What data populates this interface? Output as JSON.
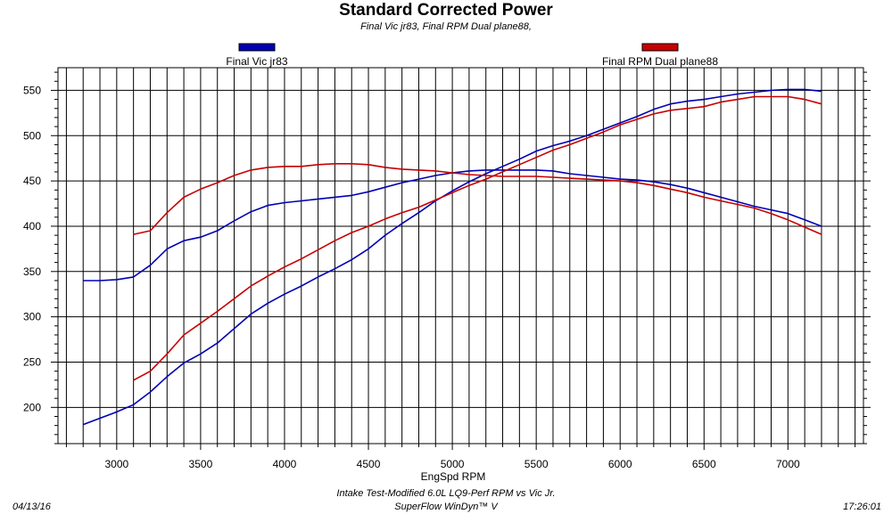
{
  "chart_data": {
    "type": "line",
    "title": "Standard Corrected Power",
    "subtitle": "Final Vic jr83, Final RPM Dual plane88,",
    "xlabel": "EngSpd RPM",
    "ylabel": "",
    "xlim": [
      2650,
      7450
    ],
    "ylim": [
      160,
      575
    ],
    "xticks": [
      3000,
      3500,
      4000,
      4500,
      5000,
      5500,
      6000,
      6500,
      7000
    ],
    "yticks": [
      200,
      250,
      300,
      350,
      400,
      450,
      500,
      550
    ],
    "grid": true,
    "legend_placement": "top",
    "series": [
      {
        "name": "Final Vic jr83",
        "metric": "power",
        "color": "#0000b4",
        "x": [
          2800,
          2900,
          3000,
          3100,
          3200,
          3300,
          3400,
          3500,
          3600,
          3700,
          3800,
          3900,
          4000,
          4100,
          4200,
          4300,
          4400,
          4500,
          4600,
          4700,
          4800,
          4900,
          5000,
          5100,
          5200,
          5300,
          5400,
          5500,
          5600,
          5700,
          5800,
          5900,
          6000,
          6100,
          6200,
          6300,
          6400,
          6500,
          6600,
          6700,
          6800,
          6900,
          7000,
          7100,
          7200
        ],
        "values": [
          181,
          188,
          195,
          203,
          217,
          234,
          249,
          259,
          271,
          287,
          303,
          315,
          325,
          334,
          344,
          353,
          363,
          375,
          390,
          403,
          415,
          428,
          439,
          449,
          458,
          466,
          474,
          483,
          489,
          494,
          500,
          507,
          514,
          521,
          529,
          535,
          538,
          540,
          543,
          546,
          548,
          550,
          551,
          551,
          549
        ]
      },
      {
        "name": "Final Vic jr83",
        "metric": "torque",
        "color": "#0000b4",
        "x": [
          2800,
          2900,
          3000,
          3100,
          3200,
          3300,
          3400,
          3500,
          3600,
          3700,
          3800,
          3900,
          4000,
          4100,
          4200,
          4300,
          4400,
          4500,
          4600,
          4700,
          4800,
          4900,
          5000,
          5100,
          5200,
          5300,
          5400,
          5500,
          5600,
          5700,
          5800,
          5900,
          6000,
          6100,
          6200,
          6300,
          6400,
          6500,
          6600,
          6700,
          6800,
          6900,
          7000,
          7100,
          7200
        ],
        "values": [
          340,
          340,
          341,
          344,
          357,
          375,
          384,
          388,
          395,
          406,
          416,
          423,
          426,
          428,
          430,
          432,
          434,
          438,
          443,
          448,
          452,
          456,
          459,
          461,
          462,
          462,
          462,
          462,
          461,
          458,
          456,
          454,
          452,
          451,
          449,
          446,
          442,
          437,
          432,
          427,
          422,
          418,
          414,
          407,
          400
        ]
      },
      {
        "name": "Final RPM Dual plane88",
        "metric": "power",
        "color": "#c80000",
        "x": [
          3100,
          3200,
          3300,
          3400,
          3500,
          3600,
          3700,
          3800,
          3900,
          4000,
          4100,
          4200,
          4300,
          4400,
          4500,
          4600,
          4700,
          4800,
          4900,
          5000,
          5100,
          5200,
          5300,
          5400,
          5500,
          5600,
          5700,
          5800,
          5900,
          6000,
          6100,
          6200,
          6300,
          6400,
          6500,
          6600,
          6700,
          6800,
          6900,
          7000,
          7100,
          7200
        ],
        "values": [
          230,
          240,
          259,
          280,
          293,
          306,
          320,
          334,
          345,
          355,
          364,
          374,
          384,
          393,
          400,
          408,
          415,
          421,
          429,
          437,
          445,
          452,
          460,
          468,
          476,
          484,
          490,
          497,
          504,
          512,
          518,
          524,
          528,
          530,
          532,
          537,
          540,
          543,
          543,
          543,
          540,
          535
        ]
      },
      {
        "name": "Final RPM Dual plane88",
        "metric": "torque",
        "color": "#c80000",
        "x": [
          3100,
          3200,
          3300,
          3400,
          3500,
          3600,
          3700,
          3800,
          3900,
          4000,
          4100,
          4200,
          4300,
          4400,
          4500,
          4600,
          4700,
          4800,
          4900,
          5000,
          5100,
          5200,
          5300,
          5400,
          5500,
          5600,
          5700,
          5800,
          5900,
          6000,
          6100,
          6200,
          6300,
          6400,
          6500,
          6600,
          6700,
          6800,
          6900,
          7000,
          7100,
          7200
        ],
        "values": [
          391,
          395,
          415,
          432,
          441,
          448,
          456,
          462,
          465,
          466,
          466,
          468,
          469,
          469,
          468,
          465,
          463,
          462,
          461,
          459,
          457,
          456,
          455,
          455,
          455,
          454,
          453,
          452,
          451,
          450,
          448,
          445,
          441,
          437,
          432,
          428,
          424,
          420,
          414,
          407,
          399,
          391
        ]
      }
    ]
  },
  "footer": {
    "description": "Intake Test-Modified 6.0L LQ9-Perf RPM vs Vic Jr.",
    "software": "SuperFlow WinDyn™ V",
    "date": "04/13/16",
    "time": "17:26:01"
  }
}
